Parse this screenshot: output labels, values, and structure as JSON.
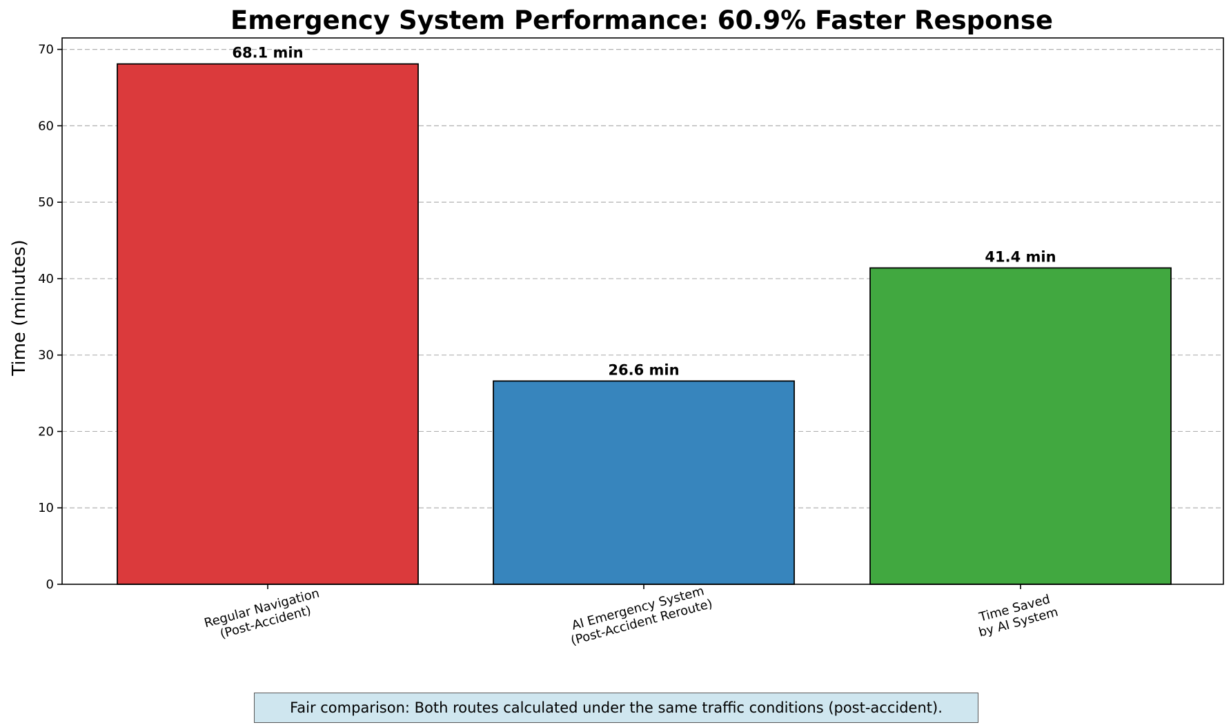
{
  "chart_data": {
    "type": "bar",
    "title": "Emergency System Performance: 60.9% Faster Response",
    "ylabel": "Time (minutes)",
    "xlabel": "",
    "ylim": [
      0,
      71.5
    ],
    "yticks": [
      0,
      10,
      20,
      30,
      40,
      50,
      60,
      70
    ],
    "grid": "y-dashed",
    "categories": [
      [
        "Regular Navigation",
        "(Post-Accident)"
      ],
      [
        "AI Emergency System",
        "(Post-Accident Reroute)"
      ],
      [
        "Time Saved",
        "by AI System"
      ]
    ],
    "values": [
      68.1,
      26.6,
      41.4
    ],
    "value_labels": [
      "68.1 min",
      "26.6 min",
      "41.4 min"
    ],
    "colors": [
      "#db3a3c",
      "#3785bd",
      "#41a840"
    ]
  },
  "footnote": "Fair comparison: Both routes calculated under the same traffic conditions (post-accident)."
}
